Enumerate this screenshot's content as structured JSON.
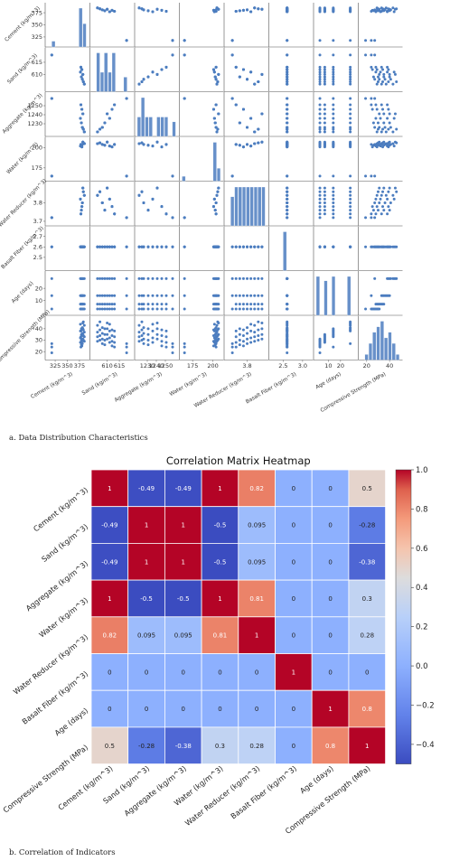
{
  "figure": {
    "caption_a": "a. Data Distribution Characteristics",
    "caption_b": "b. Correlation of Indicators"
  },
  "chart_data": [
    {
      "type": "scatter",
      "variables": [
        "Cement (kg/m^3)",
        "Sand (kg/m^3)",
        "Aggregate (kg/m^3)",
        "Water (kg/m^3)",
        "Water Reducer (kg/m^3)",
        "Basalt Fiber (kg/m^3)",
        "Age (days)",
        "Compressive Strength (MPa)"
      ],
      "ranges": [
        [
          310,
          390
        ],
        [
          604,
          620
        ],
        [
          1219,
          1262
        ],
        [
          162,
          210
        ],
        [
          3.69,
          3.9
        ],
        [
          2.4,
          2.77
        ],
        [
          0,
          32
        ],
        [
          15,
          49
        ]
      ],
      "ticks": [
        [
          "325",
          "350",
          "375"
        ],
        [
          "610",
          "615"
        ],
        [
          "1230",
          "1240",
          "1250"
        ],
        [
          "175",
          "200"
        ],
        [
          "3.7",
          "3.8"
        ],
        [
          "2.5",
          "2.6",
          "2.7"
        ],
        [
          "10",
          "20"
        ],
        [
          "20",
          "30",
          "40"
        ]
      ],
      "tick_values": [
        [
          325,
          350,
          375
        ],
        [
          610,
          615
        ],
        [
          1230,
          1240,
          1250
        ],
        [
          175,
          200
        ],
        [
          3.7,
          3.8
        ],
        [
          2.5,
          2.6,
          2.7
        ],
        [
          10,
          20
        ],
        [
          20,
          30,
          40
        ]
      ],
      "bottom_ticks": [
        [
          "325",
          "350",
          "375"
        ],
        [
          "610",
          "615"
        ],
        [
          "1230",
          "1240",
          "1250"
        ],
        [
          "175",
          "200"
        ],
        [
          "3.8"
        ],
        [
          "2.5",
          "3.0"
        ],
        [
          "10",
          "20"
        ],
        [
          "20",
          "40"
        ]
      ],
      "bottom_tick_values": [
        [
          325,
          350,
          375
        ],
        [
          610,
          615
        ],
        [
          1230,
          1240,
          1250
        ],
        [
          175,
          200
        ],
        [
          3.8
        ],
        [
          2.5,
          3.0
        ],
        [
          10,
          20
        ],
        [
          20,
          40
        ]
      ],
      "bottom_ranges": [
        [
          310,
          390
        ],
        [
          604,
          620
        ],
        [
          1219,
          1262
        ],
        [
          162,
          210
        ],
        [
          3.69,
          3.9
        ],
        [
          2.2,
          3.2
        ],
        [
          0,
          32
        ],
        [
          15,
          49
        ]
      ],
      "records": [
        [
          318,
          618,
          1258,
          165,
          3.72,
          2.6,
          3,
          19
        ],
        [
          318,
          618,
          1258,
          165,
          3.72,
          2.6,
          14,
          24
        ],
        [
          318,
          618,
          1258,
          165,
          3.72,
          2.6,
          28,
          27
        ],
        [
          385,
          606,
          1221,
          205,
          3.84,
          2.6,
          3,
          29
        ],
        [
          385,
          606,
          1221,
          205,
          3.84,
          2.6,
          7,
          33
        ],
        [
          385,
          606,
          1221,
          205,
          3.84,
          2.6,
          14,
          37
        ],
        [
          385,
          606,
          1221,
          205,
          3.84,
          2.6,
          28,
          43
        ],
        [
          381,
          608,
          1226,
          204,
          3.8,
          2.6,
          3,
          27
        ],
        [
          381,
          608,
          1226,
          204,
          3.8,
          2.6,
          7,
          31
        ],
        [
          381,
          608,
          1226,
          204,
          3.8,
          2.6,
          14,
          36
        ],
        [
          381,
          608,
          1226,
          204,
          3.8,
          2.6,
          28,
          41
        ],
        [
          379,
          609,
          1231,
          203,
          3.76,
          2.6,
          3,
          26
        ],
        [
          379,
          609,
          1231,
          203,
          3.76,
          2.6,
          7,
          30
        ],
        [
          379,
          609,
          1231,
          203,
          3.76,
          2.6,
          14,
          35
        ],
        [
          379,
          609,
          1231,
          203,
          3.76,
          2.6,
          28,
          40
        ],
        [
          377,
          611,
          1236,
          202,
          3.82,
          2.6,
          3,
          28
        ],
        [
          377,
          611,
          1236,
          202,
          3.82,
          2.6,
          7,
          32
        ],
        [
          377,
          611,
          1236,
          202,
          3.82,
          2.6,
          14,
          38
        ],
        [
          377,
          611,
          1236,
          202,
          3.82,
          2.6,
          28,
          44
        ],
        [
          383,
          607,
          1224,
          206,
          3.86,
          2.6,
          3,
          30
        ],
        [
          383,
          607,
          1224,
          206,
          3.86,
          2.6,
          7,
          34
        ],
        [
          383,
          607,
          1224,
          206,
          3.86,
          2.6,
          14,
          39
        ],
        [
          383,
          607,
          1224,
          206,
          3.86,
          2.6,
          28,
          46
        ],
        [
          380,
          612,
          1246,
          201,
          3.78,
          2.6,
          3,
          25
        ],
        [
          380,
          612,
          1246,
          201,
          3.78,
          2.6,
          7,
          29
        ],
        [
          380,
          612,
          1246,
          201,
          3.78,
          2.6,
          14,
          34
        ],
        [
          380,
          612,
          1246,
          201,
          3.78,
          2.6,
          28,
          39
        ],
        [
          382,
          610,
          1241,
          207,
          3.88,
          2.6,
          3,
          31
        ],
        [
          382,
          610,
          1241,
          207,
          3.88,
          2.6,
          7,
          35
        ],
        [
          382,
          610,
          1241,
          207,
          3.88,
          2.6,
          14,
          40
        ],
        [
          382,
          610,
          1241,
          207,
          3.88,
          2.6,
          28,
          45
        ],
        [
          378,
          613,
          1251,
          204,
          3.74,
          2.6,
          3,
          24
        ],
        [
          378,
          613,
          1251,
          204,
          3.74,
          2.6,
          7,
          28
        ],
        [
          378,
          613,
          1251,
          204,
          3.74,
          2.6,
          14,
          33
        ],
        [
          378,
          613,
          1251,
          204,
          3.74,
          2.6,
          28,
          38
        ]
      ],
      "color": "#4c7dbf"
    },
    {
      "type": "heatmap",
      "title": "Correlation Matrix Heatmap",
      "labels": [
        "Cement (kg/m^3)",
        "Sand (kg/m^3)",
        "Aggregate (kg/m^3)",
        "Water (kg/m^3)",
        "Water Reducer (kg/m^3)",
        "Basalt Fiber (kg/m^3)",
        "Age (days)",
        "Compressive Strength (MPa)"
      ],
      "matrix": [
        [
          1,
          -0.49,
          -0.49,
          1,
          0.82,
          0,
          0,
          0.5
        ],
        [
          -0.49,
          1,
          1,
          -0.5,
          0.095,
          0,
          0,
          -0.28
        ],
        [
          -0.49,
          1,
          1,
          -0.5,
          0.095,
          0,
          0,
          -0.38
        ],
        [
          1,
          -0.5,
          -0.5,
          1,
          0.81,
          0,
          0,
          0.3
        ],
        [
          0.82,
          0.095,
          0.095,
          0.81,
          1,
          0,
          0,
          0.28
        ],
        [
          0,
          0,
          0,
          0,
          0,
          1,
          0,
          0
        ],
        [
          0,
          0,
          0,
          0,
          0,
          0,
          1,
          0.8
        ],
        [
          0.5,
          -0.28,
          -0.38,
          0.3,
          0.28,
          0,
          0.8,
          1
        ]
      ],
      "cell_text": [
        [
          "1",
          "-0.49",
          "-0.49",
          "1",
          "0.82",
          "0",
          "0",
          "0.5"
        ],
        [
          "-0.49",
          "1",
          "1",
          "-0.5",
          "0.095",
          "0",
          "0",
          "-0.28"
        ],
        [
          "-0.49",
          "1",
          "1",
          "-0.5",
          "0.095",
          "0",
          "0",
          "-0.38"
        ],
        [
          "1",
          "-0.5",
          "-0.5",
          "1",
          "0.81",
          "0",
          "0",
          "0.3"
        ],
        [
          "0.82",
          "0.095",
          "0.095",
          "0.81",
          "1",
          "0",
          "0",
          "0.28"
        ],
        [
          "0",
          "0",
          "0",
          "0",
          "0",
          "1",
          "0",
          "0"
        ],
        [
          "0",
          "0",
          "0",
          "0",
          "0",
          "0",
          "1",
          "0.8"
        ],
        [
          "0.5",
          "-0.28",
          "-0.38",
          "0.3",
          "0.28",
          "0",
          "0.8",
          "1"
        ]
      ],
      "colormap": "coolwarm",
      "colorbar_range": [
        -0.5,
        1.0
      ],
      "colorbar_ticks": [
        "1.0",
        "0.8",
        "0.6",
        "0.4",
        "0.2",
        "0.0",
        "−0.2",
        "−0.4"
      ],
      "colorbar_tick_values": [
        1.0,
        0.8,
        0.6,
        0.4,
        0.2,
        0.0,
        -0.2,
        -0.4
      ]
    }
  ]
}
